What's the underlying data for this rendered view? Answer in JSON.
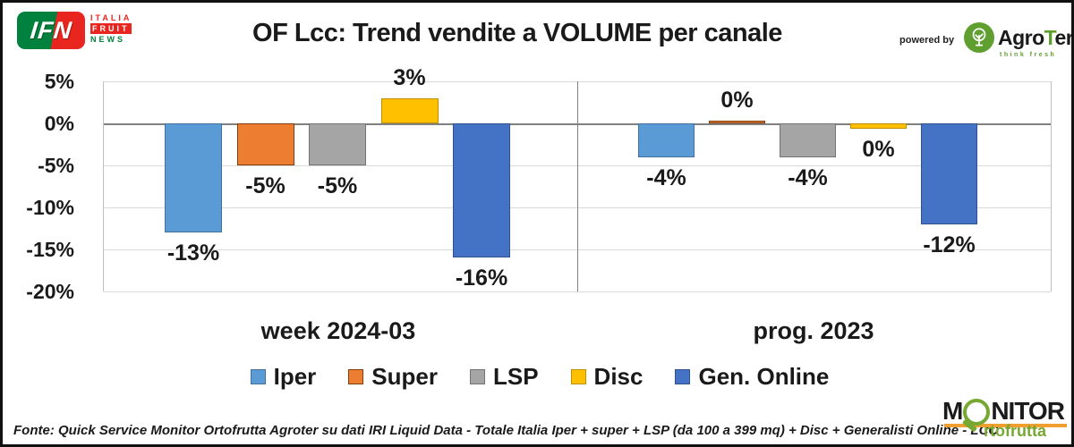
{
  "header": {
    "title": "OF Lcc: Trend vendite a VOLUME per canale",
    "ifn_logo": {
      "acronym": "IFN",
      "line1": "ITALIA",
      "line2": "FRUIT",
      "line3": "NEWS"
    },
    "powered_by": "powered by",
    "agroter_logo": {
      "name_pre": "Agro",
      "name_t": "T",
      "name_post": "er",
      "tagline": "think fresh"
    }
  },
  "chart_data": {
    "type": "bar",
    "title": "OF Lcc: Trend vendite a VOLUME per canale",
    "categories": [
      "Iper",
      "Super",
      "LSP",
      "Disc",
      "Gen. Online"
    ],
    "series_colors": [
      "#5B9BD5",
      "#ED7D31",
      "#A5A5A5",
      "#FFC000",
      "#4472C4"
    ],
    "series_border_colors": [
      "#41719C",
      "#843C0C",
      "#737373",
      "#BF8F00",
      "#2F528F"
    ],
    "yticks": [
      "5%",
      "0%",
      "-5%",
      "-10%",
      "-15%",
      "-20%"
    ],
    "ylim": [
      -20,
      5
    ],
    "grid": true,
    "legend_position": "bottom",
    "panels": [
      {
        "title": "week 2024-03",
        "values": [
          -13,
          -5,
          -5,
          3,
          -16
        ],
        "labels": [
          "-13%",
          "-5%",
          "-5%",
          "3%",
          "-16%"
        ]
      },
      {
        "title": "prog. 2023",
        "values": [
          -4,
          0,
          -4,
          0,
          -12
        ],
        "labels": [
          "-4%",
          "0%",
          "-4%",
          "0%",
          "-12%"
        ],
        "draw_values": [
          -4,
          0.3,
          -4,
          -0.6,
          -12
        ]
      }
    ]
  },
  "footer": {
    "source": "Fonte: Quick Service Monitor Ortofrutta Agroter su dati IRI Liquid Data - Totale Italia Iper + super + LSP (da 100 a 399 mq) + Disc + Generalisti Online - LCC",
    "monitor_logo": {
      "part1": "M",
      "part2": "NITOR",
      "part3": "rtofrutta"
    }
  }
}
